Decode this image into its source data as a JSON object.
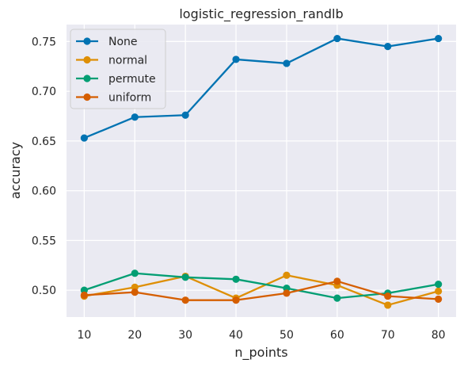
{
  "chart_data": {
    "type": "line",
    "title": "logistic_regression_randlb",
    "xlabel": "n_points",
    "ylabel": "accuracy",
    "x": [
      10,
      20,
      30,
      40,
      50,
      60,
      70,
      80
    ],
    "x_ticks": [
      "10",
      "20",
      "30",
      "40",
      "50",
      "60",
      "70",
      "80"
    ],
    "y_ticks": [
      "0.50",
      "0.55",
      "0.60",
      "0.65",
      "0.70",
      "0.75"
    ],
    "y_tick_values": [
      0.5,
      0.55,
      0.6,
      0.65,
      0.7,
      0.75
    ],
    "xlim": [
      6.5,
      83.5
    ],
    "ylim": [
      0.473,
      0.767
    ],
    "grid": true,
    "legend_position": "top-left",
    "series": [
      {
        "name": "None",
        "color": "#0173b2",
        "values": [
          0.653,
          0.674,
          0.676,
          0.732,
          0.728,
          0.753,
          0.745,
          0.753
        ]
      },
      {
        "name": "normal",
        "color": "#de8f05",
        "values": [
          0.494,
          0.503,
          0.514,
          0.492,
          0.515,
          0.505,
          0.485,
          0.499
        ]
      },
      {
        "name": "permute",
        "color": "#029e73",
        "values": [
          0.5,
          0.517,
          0.513,
          0.511,
          0.502,
          0.492,
          0.497,
          0.506
        ]
      },
      {
        "name": "uniform",
        "color": "#d55e00",
        "values": [
          0.495,
          0.498,
          0.49,
          0.49,
          0.497,
          0.509,
          0.494,
          0.491
        ]
      }
    ]
  }
}
